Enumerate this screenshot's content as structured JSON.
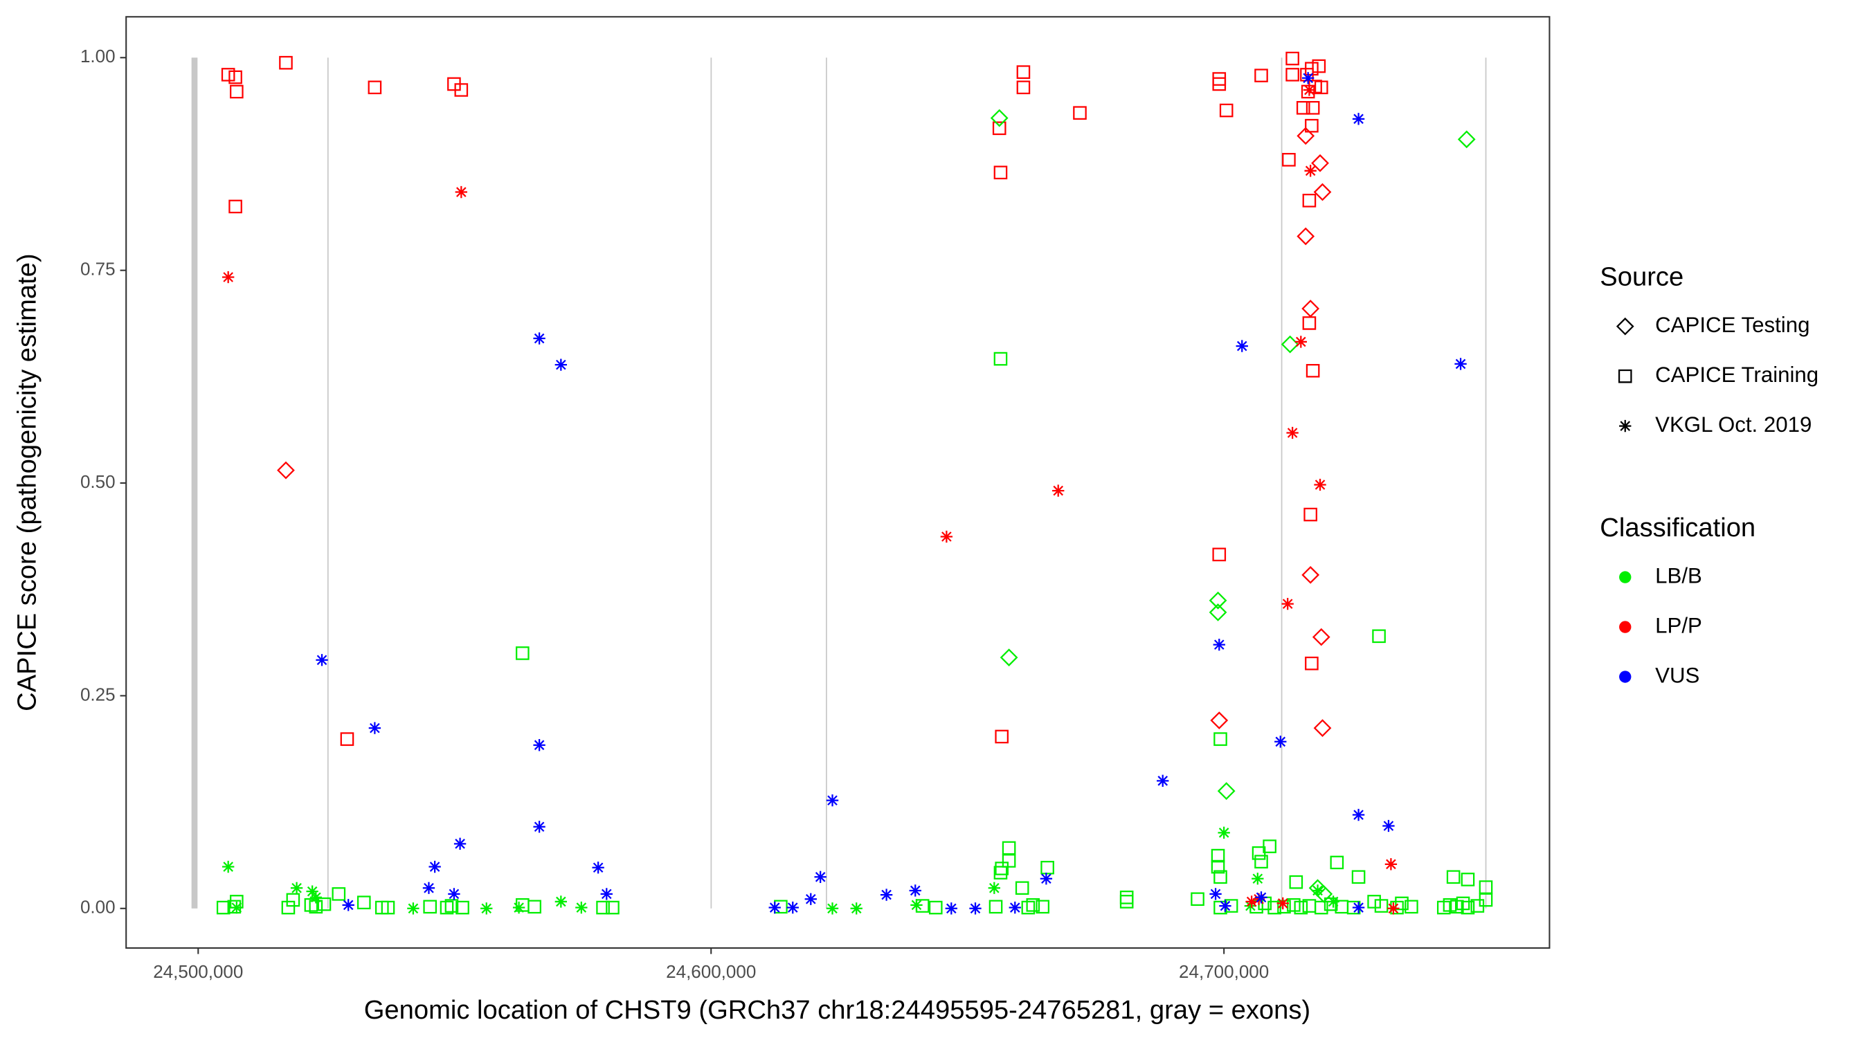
{
  "chart_data": {
    "type": "scatter",
    "x_label": "Genomic location of CHST9 (GRCh37 chr18:24495595-24765281, gray = exons)",
    "y_label": "CAPICE score (pathogenicity estimate)",
    "xlim": [
      24485950,
      24763470
    ],
    "ylim": [
      -0.0465,
      1.048
    ],
    "xticks": [
      {
        "value": 24500000,
        "label": "24,500,000"
      },
      {
        "value": 24600000,
        "label": "24,600,000"
      },
      {
        "value": 24700000,
        "label": "24,700,000"
      }
    ],
    "yticks": [
      {
        "value": 0,
        "label": "0.00"
      },
      0.25,
      {
        "value": 0.5,
        "label": "0.50"
      },
      0.75,
      {
        "value": 1,
        "label": "1.00"
      }
    ],
    "exon_color": "#c8c8c8",
    "exon_y": [
      0,
      1
    ],
    "exons": [
      {
        "start": 24498700,
        "end": 24499870
      },
      {
        "start": 24525190,
        "end": 24525390
      },
      {
        "start": 24599900,
        "end": 24600100
      },
      {
        "start": 24622380,
        "end": 24622580
      },
      {
        "start": 24711140,
        "end": 24711340
      },
      {
        "start": 24750950,
        "end": 24751150
      }
    ],
    "source_legend": {
      "title": "Source",
      "entries": [
        {
          "name": "CAPICE Testing",
          "shape": "diamond"
        },
        {
          "name": "CAPICE Training",
          "shape": "square"
        },
        {
          "name": "VKGL Oct. 2019",
          "shape": "star"
        }
      ]
    },
    "class_legend": {
      "title": "Classification",
      "entries": [
        {
          "name": "LB/B",
          "color": "#00ee00"
        },
        {
          "name": "LP/P",
          "color": "#ff0000"
        },
        {
          "name": "VUS",
          "color": "#0000ff"
        }
      ]
    },
    "series": [
      {
        "source": "CAPICE Training",
        "classification": "LB/B",
        "x": [
          24563234,
          24656445,
          24730220,
          24699304,
          24658085,
          24658085,
          24656680,
          24656445,
          24665579,
          24660661,
          24698836,
          24698836,
          24699304,
          24706800,
          24707267,
          24708906,
          24722022,
          24726237,
          24714059,
          24744737,
          24747547,
          24527400,
          24681037,
          24694854,
          24504918,
          24507494,
          24507026,
          24517565,
          24518502,
          24522015,
          24522951,
          24524590,
          24532320,
          24535833,
          24537004,
          24545200,
          24548479,
          24549416,
          24551524,
          24563234,
          24565576,
          24578925,
          24580799,
          24613587,
          24641223,
          24643799,
          24655509,
          24661832,
          24662769,
          24664643,
          24681037,
          24699304,
          24701412,
          24706330,
          24707970,
          24709843,
          24711717,
          24713590,
          24715000,
          24716635,
          24718976,
          24720851,
          24722958,
          24725300,
          24729282,
          24730687,
          24733731,
          24734668,
          24736542,
          24742865,
          24744036,
          24745441,
          24746612,
          24747547,
          24749421,
          24751060,
          24751060
        ],
        "y": [
          0.3,
          0.646,
          0.32,
          0.199,
          0.071,
          0.056,
          0.047,
          0.042,
          0.048,
          0.024,
          0.062,
          0.049,
          0.037,
          0.065,
          0.055,
          0.073,
          0.054,
          0.037,
          0.031,
          0.037,
          0.034,
          0.017,
          0.013,
          0.011,
          0.001,
          0.008,
          0.002,
          0.001,
          0.01,
          0.004,
          0.002,
          0.005,
          0.007,
          0.001,
          0.001,
          0.002,
          0.001,
          0.003,
          0.001,
          0.004,
          0.002,
          0.001,
          0.001,
          0.002,
          0.003,
          0.001,
          0.002,
          0.001,
          0.004,
          0.002,
          0.008,
          0.001,
          0.003,
          0.002,
          0.006,
          0.001,
          0.002,
          0.004,
          0.001,
          0.003,
          0.001,
          0.005,
          0.002,
          0.001,
          0.008,
          0.003,
          0.001,
          0.006,
          0.002,
          0.001,
          0.004,
          0.002,
          0.006,
          0.001,
          0.003,
          0.025,
          0.01
        ]
      },
      {
        "source": "CAPICE Training",
        "classification": "LP/P",
        "x": [
          24505855,
          24507260,
          24507494,
          24517097,
          24507260,
          24534427,
          24549885,
          24551290,
          24529040,
          24660895,
          24660895,
          24656211,
          24656445,
          24671903,
          24656680,
          24699070,
          24699070,
          24700475,
          24699070,
          24707267,
          24713356,
          24713356,
          24712653,
          24715464,
          24716166,
          24717103,
          24717337,
          24717805,
          24718508,
          24718976,
          24717103,
          24716635,
          24716635,
          24717337,
          24716869,
          24717103,
          24716400
        ],
        "y": [
          0.98,
          0.977,
          0.96,
          0.994,
          0.825,
          0.965,
          0.969,
          0.962,
          0.199,
          0.983,
          0.965,
          0.917,
          0.865,
          0.935,
          0.202,
          0.975,
          0.969,
          0.938,
          0.416,
          0.979,
          0.999,
          0.98,
          0.88,
          0.941,
          0.98,
          0.987,
          0.941,
          0.966,
          0.99,
          0.965,
          0.92,
          0.832,
          0.688,
          0.632,
          0.463,
          0.288,
          0.96
        ]
      },
      {
        "source": "CAPICE Testing",
        "classification": "LB/B",
        "x": [
          24656211,
          24747313,
          24658085,
          24712887,
          24698836,
          24698836,
          24700475,
          24718274,
          24719445
        ],
        "y": [
          0.929,
          0.904,
          0.295,
          0.663,
          0.362,
          0.348,
          0.138,
          0.024,
          0.017
        ]
      },
      {
        "source": "CAPICE Testing",
        "classification": "LP/P",
        "x": [
          24517097,
          24715932,
          24718742,
          24719210,
          24715932,
          24716869,
          24716869,
          24718976,
          24699070,
          24719210
        ],
        "y": [
          0.515,
          0.908,
          0.876,
          0.842,
          0.79,
          0.705,
          0.392,
          0.319,
          0.221,
          0.212
        ]
      },
      {
        "source": "VKGL Oct. 2019",
        "classification": "LB/B",
        "x": [
          24505855,
          24519204,
          24522249,
          24522951,
          24507494,
          24541922,
          24556207,
          24570728,
          24574709,
          24562530,
          24623658,
          24628342,
          24640051,
          24655211,
          24699998,
          24706566,
          24718274,
          24721319,
          24705159
        ],
        "y": [
          0.049,
          0.024,
          0.02,
          0.013,
          0.001,
          0,
          0,
          0.008,
          0.001,
          0.001,
          0,
          0,
          0.004,
          0.024,
          0.089,
          0.035,
          0.021,
          0.008,
          0.003
        ]
      },
      {
        "source": "VKGL Oct. 2019",
        "classification": "LP/P",
        "x": [
          24505855,
          24551290,
          24667684,
          24645907,
          24716869,
          24715000,
          24713356,
          24718742,
          24712418,
          24716635,
          24732560,
          24705393,
          24711482,
          24733030,
          24706800
        ],
        "y": [
          0.742,
          0.842,
          0.491,
          0.437,
          0.867,
          0.666,
          0.559,
          0.498,
          0.358,
          0.962,
          0.052,
          0.008,
          0.006,
          0,
          0.011
        ]
      },
      {
        "source": "VKGL Oct. 2019",
        "classification": "VUS",
        "x": [
          24524123,
          24534427,
          24566513,
          24570728,
          24566513,
          24566513,
          24551055,
          24546137,
          24544966,
          24549885,
          24577988,
          24579628,
          24529275,
          24623658,
          24621316,
          24619442,
          24615929,
          24612416,
          24634197,
          24639817,
          24646843,
          24651527,
          24659256,
          24665345,
          24688063,
          24703520,
          24699070,
          24711014,
          24716400,
          24726237,
          24746144,
          24726237,
          24732091,
          24726237,
          24698367,
          24700240,
          24707267
        ],
        "y": [
          0.292,
          0.212,
          0.67,
          0.639,
          0.192,
          0.096,
          0.076,
          0.049,
          0.024,
          0.017,
          0.048,
          0.017,
          0.004,
          0.127,
          0.037,
          0.011,
          0.001,
          0.001,
          0.016,
          0.021,
          0,
          0,
          0.001,
          0.035,
          0.15,
          0.661,
          0.31,
          0.196,
          0.976,
          0.928,
          0.64,
          0.11,
          0.097,
          0.001,
          0.017,
          0.003,
          0.013
        ]
      }
    ]
  }
}
